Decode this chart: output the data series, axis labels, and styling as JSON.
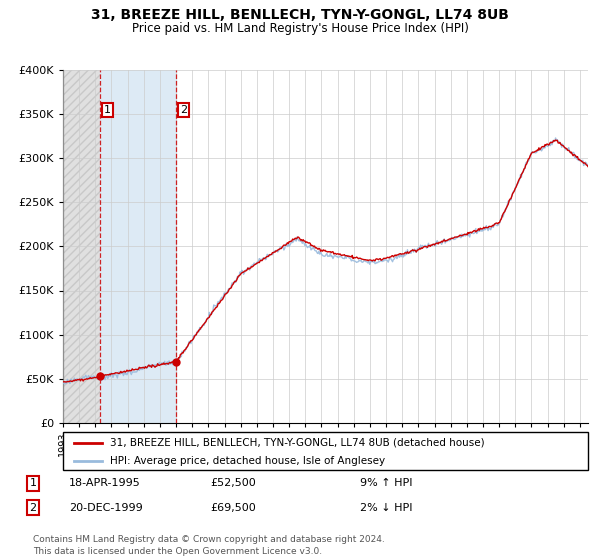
{
  "title_line1": "31, BREEZE HILL, BENLLECH, TYN-Y-GONGL, LL74 8UB",
  "title_line2": "Price paid vs. HM Land Registry's House Price Index (HPI)",
  "ylim": [
    0,
    400000
  ],
  "yticks": [
    0,
    50000,
    100000,
    150000,
    200000,
    250000,
    300000,
    350000,
    400000
  ],
  "sale1_year": 1995.29,
  "sale1_price": 52500,
  "sale2_year": 2000.0,
  "sale2_price": 69500,
  "line_color_property": "#cc0000",
  "line_color_hpi": "#99bbdd",
  "legend_property": "31, BREEZE HILL, BENLLECH, TYN-Y-GONGL, LL74 8UB (detached house)",
  "legend_hpi": "HPI: Average price, detached house, Isle of Anglesey",
  "annotation1_date": "18-APR-1995",
  "annotation1_price": "£52,500",
  "annotation1_hpi": "9% ↑ HPI",
  "annotation2_date": "20-DEC-1999",
  "annotation2_price": "£69,500",
  "annotation2_hpi": "2% ↓ HPI",
  "footnote": "Contains HM Land Registry data © Crown copyright and database right 2024.\nThis data is licensed under the Open Government Licence v3.0.",
  "bg_color": "#ffffff",
  "grid_color": "#cccccc"
}
